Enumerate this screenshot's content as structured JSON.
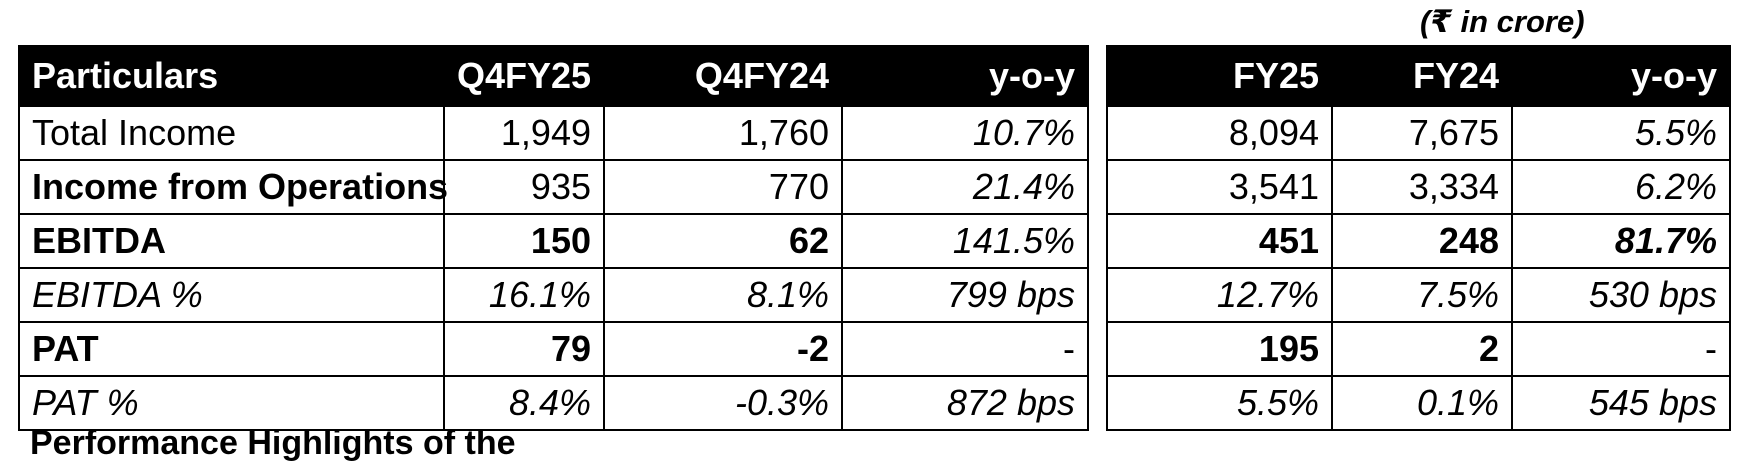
{
  "unit_note": "(₹ in crore)",
  "quarter_table": {
    "headers": [
      "Particulars",
      "Q4FY25",
      "Q4FY24",
      "y-o-y"
    ],
    "rows": [
      {
        "label": "Total Income",
        "q4fy25": "1,949",
        "q4fy24": "1,760",
        "yoy": "10.7%"
      },
      {
        "label": "Income from Operations",
        "q4fy25": "935",
        "q4fy24": "770",
        "yoy": "21.4%"
      },
      {
        "label": "EBITDA",
        "q4fy25": "150",
        "q4fy24": "62",
        "yoy": "141.5%"
      },
      {
        "label": "EBITDA %",
        "q4fy25": "16.1%",
        "q4fy24": "8.1%",
        "yoy": "799 bps"
      },
      {
        "label": "PAT",
        "q4fy25": "79",
        "q4fy24": "-2",
        "yoy": "-"
      },
      {
        "label": "PAT %",
        "q4fy25": "8.4%",
        "q4fy24": "-0.3%",
        "yoy": "872 bps"
      }
    ]
  },
  "annual_table": {
    "headers": [
      "FY25",
      "FY24",
      "y-o-y"
    ],
    "rows": [
      {
        "fy25": "8,094",
        "fy24": "7,675",
        "yoy": "5.5%"
      },
      {
        "fy25": "3,541",
        "fy24": "3,334",
        "yoy": "6.2%"
      },
      {
        "fy25": "451",
        "fy24": "248",
        "yoy": "81.7%"
      },
      {
        "fy25": "12.7%",
        "fy24": "7.5%",
        "yoy": "530 bps"
      },
      {
        "fy25": "195",
        "fy24": "2",
        "yoy": "-"
      },
      {
        "fy25": "5.5%",
        "fy24": "0.1%",
        "yoy": "545 bps"
      }
    ]
  },
  "footer_text": "Performance Highlights of the"
}
